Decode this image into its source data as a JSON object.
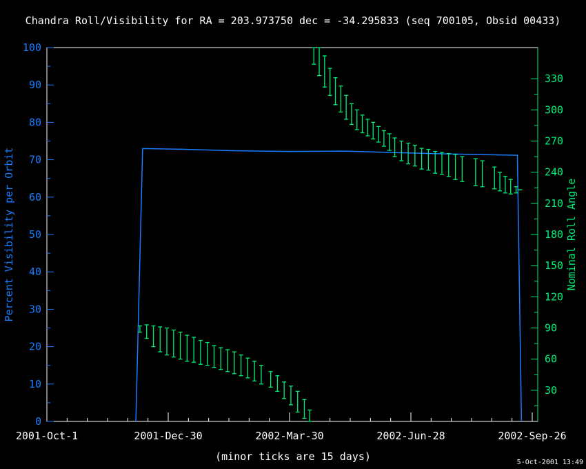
{
  "chart_data": {
    "type": "line",
    "title": "Chandra Roll/Visibility for RA = 203.973750 dec = -34.295833 (seq 700105, Obsid 00433)",
    "xlabel": "(minor ticks are 15 days)",
    "ylabel": "Percent Visibility per Orbit",
    "y2label": "Nominal Roll Angle",
    "timestamp": "5-Oct-2001 13:49",
    "xlim_days": [
      0,
      363
    ],
    "ylim": [
      0,
      100
    ],
    "y2lim": [
      0,
      360
    ],
    "x_ticks": [
      {
        "day": 0,
        "label": "2001-Oct-1"
      },
      {
        "day": 90,
        "label": "2001-Dec-30"
      },
      {
        "day": 180,
        "label": "2002-Mar-30"
      },
      {
        "day": 270,
        "label": "2002-Jun-28"
      },
      {
        "day": 360,
        "label": "2002-Sep-26"
      }
    ],
    "minor_tick_days": 15,
    "y_ticks": [
      "0",
      "10",
      "20",
      "30",
      "40",
      "50",
      "60",
      "70",
      "80",
      "90",
      "100"
    ],
    "y2_ticks": [
      "30",
      "60",
      "90",
      "120",
      "150",
      "180",
      "210",
      "240",
      "270",
      "300",
      "330"
    ],
    "colors": {
      "visibility": "#1a7cff",
      "roll": "#00ee77",
      "axis": "#ffffff"
    },
    "series": [
      {
        "name": "Percent Visibility per Orbit",
        "axis": "left",
        "points": [
          [
            66,
            0
          ],
          [
            71,
            73
          ],
          [
            100,
            72.8
          ],
          [
            140,
            72.4
          ],
          [
            180,
            72.2
          ],
          [
            220,
            72.3
          ],
          [
            250,
            72
          ],
          [
            290,
            71.6
          ],
          [
            349,
            71.2
          ],
          [
            352,
            0
          ]
        ]
      },
      {
        "name": "Nominal Roll Angle",
        "axis": "right",
        "kind": "errorbar",
        "bars": [
          [
            69,
            86,
            92
          ],
          [
            74,
            80,
            93
          ],
          [
            79,
            72,
            92
          ],
          [
            84,
            67,
            91
          ],
          [
            89,
            64,
            90
          ],
          [
            94,
            62,
            88
          ],
          [
            99,
            60,
            86
          ],
          [
            104,
            58,
            83
          ],
          [
            109,
            57,
            81
          ],
          [
            114,
            55,
            78
          ],
          [
            119,
            54,
            76
          ],
          [
            124,
            52,
            73
          ],
          [
            129,
            50,
            71
          ],
          [
            134,
            48,
            69
          ],
          [
            139,
            46,
            67
          ],
          [
            144,
            44,
            64
          ],
          [
            149,
            42,
            61
          ],
          [
            154,
            39,
            58
          ],
          [
            159,
            36,
            54
          ],
          [
            166,
            33,
            48
          ],
          [
            171,
            29,
            44
          ],
          [
            176,
            22,
            38
          ],
          [
            181,
            16,
            34
          ],
          [
            186,
            9,
            29
          ],
          [
            191,
            3,
            21
          ],
          [
            195,
            0,
            11
          ],
          [
            198,
            344,
            360
          ],
          [
            202,
            333,
            360
          ],
          [
            206,
            322,
            352
          ],
          [
            210,
            314,
            340
          ],
          [
            214,
            305,
            331
          ],
          [
            218,
            298,
            323
          ],
          [
            222,
            291,
            314
          ],
          [
            226,
            286,
            306
          ],
          [
            230,
            281,
            300
          ],
          [
            234,
            278,
            295
          ],
          [
            238,
            275,
            291
          ],
          [
            242,
            272,
            288
          ],
          [
            246,
            269,
            284
          ],
          [
            250,
            265,
            280
          ],
          [
            254,
            261,
            277
          ],
          [
            258,
            255,
            273
          ],
          [
            263,
            251,
            270
          ],
          [
            268,
            248,
            268
          ],
          [
            273,
            246,
            266
          ],
          [
            278,
            243,
            263
          ],
          [
            283,
            242,
            262
          ],
          [
            288,
            239,
            260
          ],
          [
            293,
            238,
            259
          ],
          [
            298,
            236,
            258
          ],
          [
            303,
            233,
            257
          ],
          [
            308,
            231,
            255
          ],
          [
            318,
            227,
            253
          ],
          [
            323,
            226,
            251
          ],
          [
            332,
            224,
            245
          ],
          [
            336,
            222,
            240
          ],
          [
            340,
            220,
            236
          ],
          [
            344,
            219,
            233
          ],
          [
            348,
            220,
            226
          ],
          [
            351,
            223,
            223
          ]
        ]
      }
    ]
  }
}
